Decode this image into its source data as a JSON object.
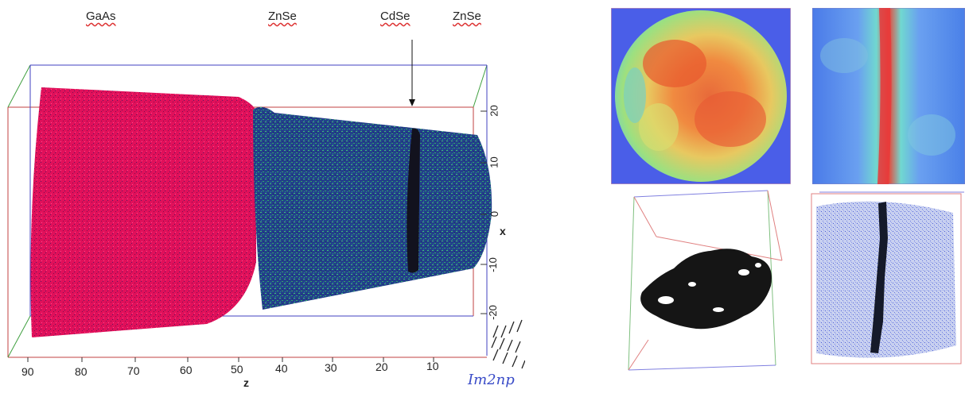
{
  "materials": {
    "gaas": "GaAs",
    "znse_left": "ZnSe",
    "cdse": "CdSe",
    "znse_right": "ZnSe"
  },
  "axes": {
    "z_label": "z",
    "x_label": "x",
    "z_ticks": [
      "90",
      "80",
      "70",
      "60",
      "50",
      "40",
      "30",
      "20",
      "10"
    ],
    "x_ticks": [
      "20",
      "10",
      "0",
      "-10",
      "-20"
    ]
  },
  "logo": "Im2np",
  "colors": {
    "gaas_atoms": "#e0105a",
    "znse_atoms_a": "#1f2fa8",
    "znse_atoms_b": "#2ea86a",
    "cdse_layer": "#1a1a2a",
    "map_low": "#4a6ee8",
    "map_high": "#e8503a"
  }
}
